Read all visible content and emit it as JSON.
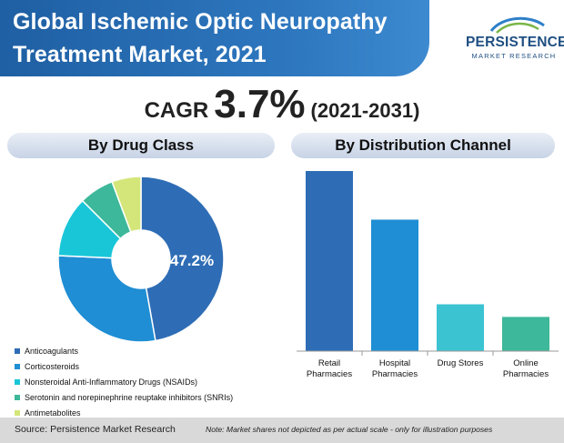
{
  "title": {
    "line1": "Global Ischemic Optic Neuropathy",
    "line2": "Treatment Market, 2021"
  },
  "logo": {
    "name": "PERSISTENCE",
    "subtitle": "MARKET RESEARCH"
  },
  "cagr": {
    "label": "CAGR",
    "value": "3.7%",
    "period": "(2021-2031)"
  },
  "panels": {
    "left_title": "By Drug Class",
    "right_title": "By Distribution Channel"
  },
  "colors": {
    "title_bg": "#2568ad",
    "footer_bg": "#d9d9d9"
  },
  "footer": {
    "source": "Source: Persistence Market Research",
    "note": "Note: Market shares not depicted as per actual scale - only for illustration purposes"
  },
  "chart_data": [
    {
      "type": "pie",
      "title": "By Drug Class",
      "donut": true,
      "center_label": "47.2%",
      "slices": [
        {
          "name": "Anticoagulants",
          "value": 47.2,
          "color": "#2e6db5"
        },
        {
          "name": "Corticosteroids",
          "value": 28.5,
          "color": "#1f8ed4"
        },
        {
          "name": "Nonsteroidal Anti-Inflammatory Drugs (NSAIDs)",
          "value": 11.8,
          "color": "#19c6d8"
        },
        {
          "name": "Serotonin and norepinephrine reuptake inhibitors (SNRIs)",
          "value": 6.8,
          "color": "#3db89a"
        },
        {
          "name": "Antimetabolites",
          "value": 5.7,
          "color": "#d4e67a"
        }
      ]
    },
    {
      "type": "bar",
      "title": "By Distribution Channel",
      "categories": [
        {
          "line1": "Retail",
          "line2": "Pharmacies"
        },
        {
          "line1": "Hospital",
          "line2": "Pharmacies"
        },
        {
          "line1": "Drug Stores",
          "line2": ""
        },
        {
          "line1": "Online",
          "line2": "Pharmacies"
        }
      ],
      "values": [
        100,
        73,
        26,
        19
      ],
      "colors": [
        "#2e6db5",
        "#1f8ed4",
        "#3cc3d1",
        "#3db89a"
      ],
      "ylim": [
        0,
        100
      ],
      "grid": false
    }
  ]
}
